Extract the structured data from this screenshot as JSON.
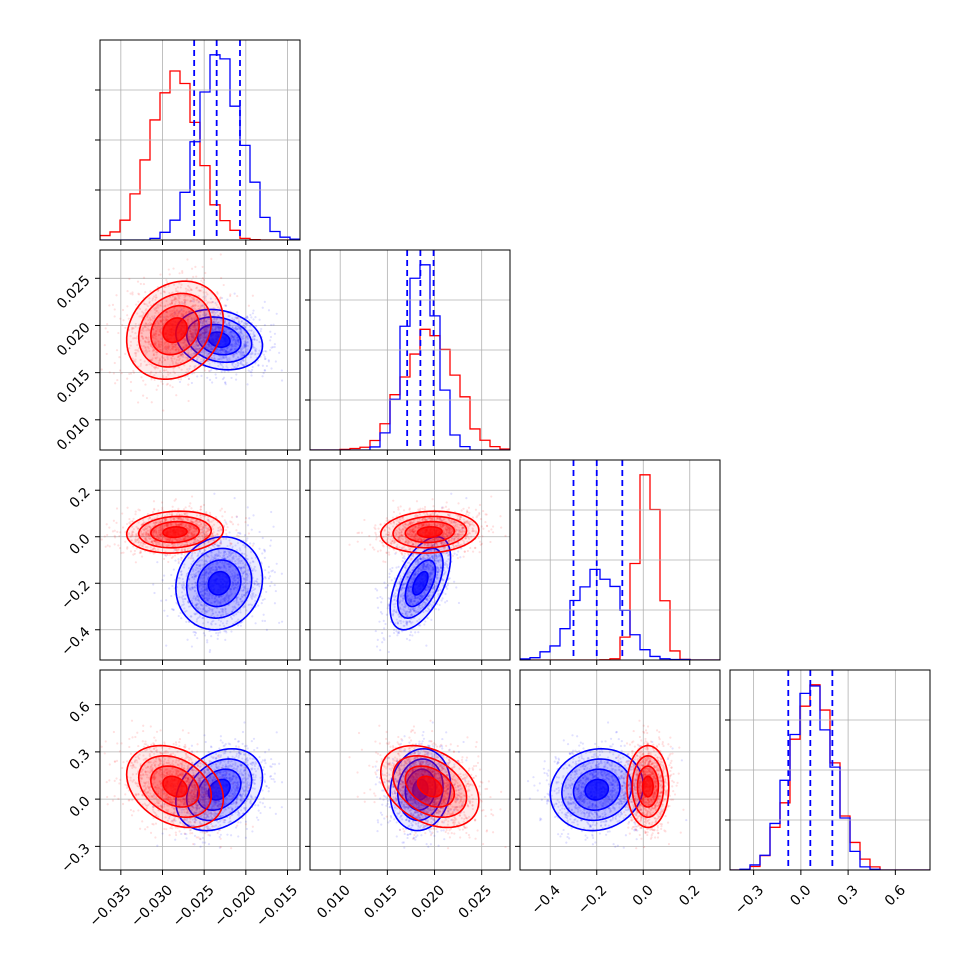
{
  "colors": {
    "red": "#ff0000",
    "blue": "#0000ff",
    "grid": "#b0b0b0",
    "frame": "#000000"
  },
  "chart_data": {
    "type": "corner",
    "title": "",
    "grid": true,
    "num_params": 4,
    "params": [
      {
        "label": "",
        "range": [
          -0.0375,
          -0.0135
        ],
        "ticks": [
          -0.035,
          -0.03,
          -0.025,
          -0.02,
          -0.015
        ],
        "tick_labels": [
          "−0.035",
          "−0.030",
          "−0.025",
          "−0.020",
          "−0.015"
        ]
      },
      {
        "label": "",
        "range": [
          0.0068,
          0.028
        ],
        "ticks": [
          0.01,
          0.015,
          0.02,
          0.025
        ],
        "tick_labels": [
          "0.010",
          "0.015",
          "0.020",
          "0.025"
        ]
      },
      {
        "label": "",
        "range": [
          -0.53,
          0.33
        ],
        "ticks": [
          -0.4,
          -0.2,
          0.0,
          0.2
        ],
        "tick_labels": [
          "−0.4",
          "−0.2",
          "0.0",
          "0.2"
        ]
      },
      {
        "label": "",
        "range": [
          -0.45,
          0.82
        ],
        "ticks": [
          -0.3,
          0.0,
          0.3,
          0.6
        ],
        "tick_labels": [
          "−0.3",
          "0.0",
          "0.3",
          "0.6"
        ]
      }
    ],
    "series": [
      {
        "name": "",
        "color": "#ff0000",
        "mean": [
          -0.0285,
          0.0195,
          0.02,
          0.08
        ],
        "std": [
          0.0029,
          0.0026,
          0.045,
          0.13
        ],
        "corr": [
          [
            1,
            0.2,
            0.1,
            -0.3
          ],
          [
            0.2,
            1,
            0.1,
            -0.35
          ],
          [
            0.1,
            0.1,
            1,
            0.0
          ],
          [
            -0.3,
            -0.35,
            0.0,
            1
          ]
        ]
      },
      {
        "name": "",
        "color": "#0000ff",
        "mean": [
          -0.0232,
          0.0185,
          -0.2,
          0.06
        ],
        "std": [
          0.0026,
          0.0016,
          0.1,
          0.13
        ],
        "corr": [
          [
            1,
            -0.2,
            0.1,
            0.3
          ],
          [
            -0.2,
            1,
            0.55,
            0.1
          ],
          [
            0.1,
            0.55,
            1,
            0.1
          ],
          [
            0.3,
            0.1,
            0.1,
            1
          ]
        ]
      }
    ],
    "quantile_lines": {
      "color": "#0000ff",
      "values": [
        [
          -0.0262,
          -0.0235,
          -0.0207
        ],
        [
          0.0171,
          0.0185,
          0.0199
        ],
        [
          -0.3,
          -0.2,
          -0.09
        ],
        [
          -0.08,
          0.06,
          0.2
        ]
      ]
    }
  }
}
